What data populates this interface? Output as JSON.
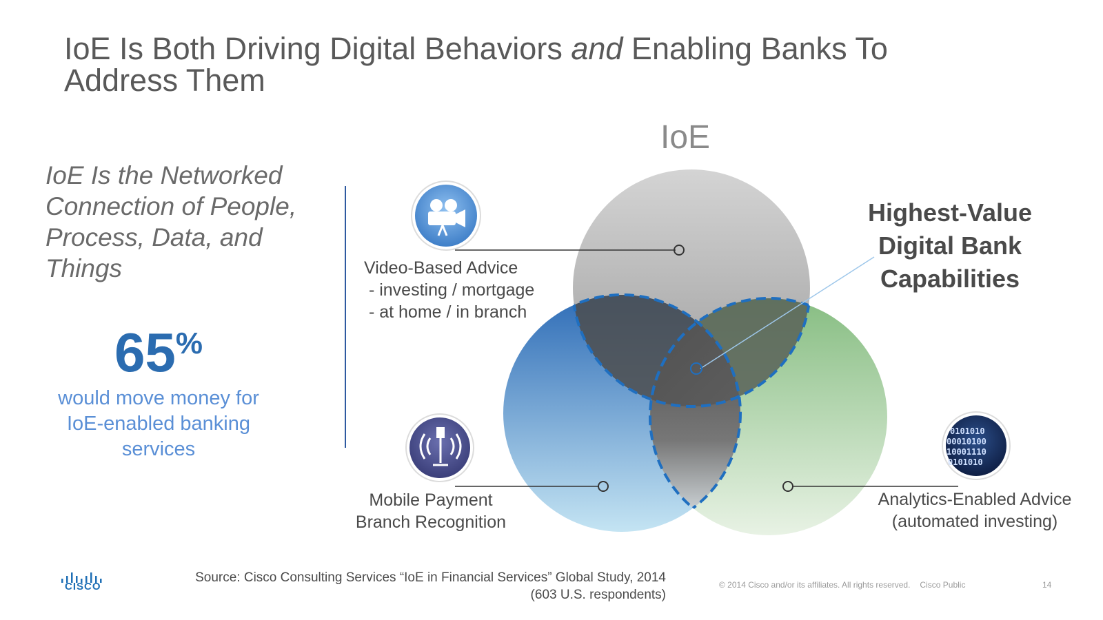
{
  "slide": {
    "title_part1": "IoE Is Both Driving Digital Behaviors ",
    "title_em": "and",
    "title_part2": " Enabling Banks To Address Them",
    "quote": "IoE Is the Networked Connection of People, Process, Data, and Things",
    "stat": {
      "value": "65",
      "unit": "%",
      "description": "would move money for IoE-enabled banking services"
    }
  },
  "diagram": {
    "ioe_label": "IoE",
    "highest_value": "Highest-Value Digital Bank Capabilities",
    "video": {
      "icon": "video-camera-icon",
      "line1": "Video-Based Advice",
      "line2": " - investing / mortgage",
      "line3": " - at home / in branch"
    },
    "mobile": {
      "icon": "wireless-signal-icon",
      "line1": "Mobile Payment",
      "line2": "Branch Recognition"
    },
    "analytics": {
      "icon": "binary-data-icon",
      "line1": "Analytics-Enabled Advice",
      "line2": "(automated investing)"
    },
    "colors": {
      "gray_circle": "#b8b8b8",
      "blue_circle": "#3a78c2",
      "green_circle": "#8cc08a",
      "dashed": "#1f6fc0"
    }
  },
  "footer": {
    "source_line1": "Source: Cisco Consulting Services “IoE in Financial Services” Global Study, 2014",
    "source_line2": "(603 U.S. respondents)",
    "copyright": "© 2014  Cisco and/or its affiliates. All rights reserved.",
    "classification": "Cisco Public",
    "page_number": "14",
    "logo_text": "CISCO"
  }
}
